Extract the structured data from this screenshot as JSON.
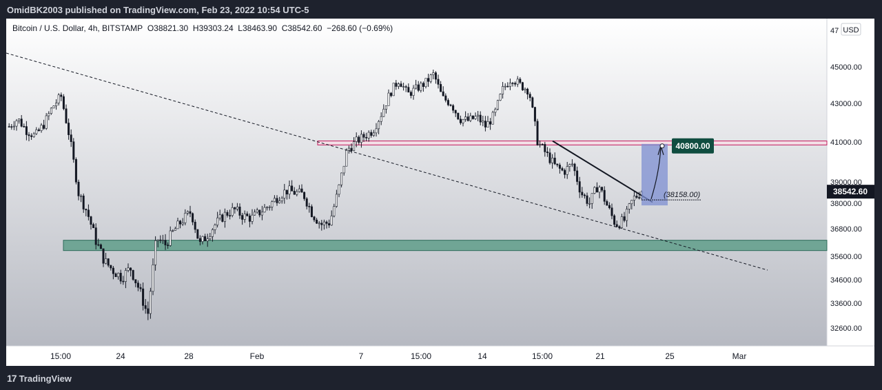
{
  "header": {
    "publish_line": "OmidBK2003 published on TradingView.com, Feb 23, 2022 10:54 UTC-5"
  },
  "legend": {
    "symbol": "Bitcoin / U.S. Dollar, 4h, BITSTAMP",
    "open": "O38821.30",
    "high": "H39303.24",
    "low": "L38463.90",
    "close": "C38542.60",
    "change": "−268.60 (−0.69%)"
  },
  "footer": {
    "brand": "TradingView",
    "logo_glyph": "17"
  },
  "colors": {
    "chart_bg_top": "#ffffff",
    "chart_bg_bottom": "#b2b5be",
    "candle": "#131722",
    "support_zone": "#5f9e8a",
    "resistance_line": "#c2185b",
    "target_box": "#7d8fd1",
    "target_label_bg": "#104d40",
    "price_tag_bg": "#131722"
  },
  "chart_data": {
    "type": "candlestick",
    "currency_label": "USD",
    "y_ticks": [
      "47000.00",
      "45000.00",
      "43000.00",
      "41000.00",
      "39000.00",
      "38000.00",
      "36800.00",
      "35600.00",
      "34600.00",
      "33600.00",
      "32600.00"
    ],
    "y_top_tick_partial": "47",
    "x_ticks": [
      "15:00",
      "24",
      "28",
      "Feb",
      "7",
      "15:00",
      "14",
      "15:00",
      "21",
      "25",
      "Mar"
    ],
    "ylim": [
      31900,
      48000
    ],
    "current_price": {
      "label": "38542.60",
      "value": 38542.6
    },
    "target": {
      "label": "40800.00",
      "value": 40800
    },
    "annotation": {
      "label": "(38158.00)",
      "value": 38158
    },
    "support_zone": {
      "low": 35850,
      "high": 36300
    },
    "resistance_line": {
      "low": 40850,
      "high": 41050
    },
    "series_close_waypoints": [
      41800,
      42200,
      41600,
      41300,
      41900,
      42800,
      43400,
      41200,
      38500,
      37600,
      36300,
      35400,
      35000,
      34700,
      35100,
      34200,
      33100,
      36400,
      36100,
      36700,
      37200,
      37600,
      36100,
      36600,
      37100,
      37500,
      37700,
      37400,
      37300,
      37600,
      37900,
      38300,
      38600,
      38500,
      38400,
      37500,
      37000,
      37100,
      38600,
      40600,
      41000,
      41300,
      41600,
      42500,
      43600,
      44300,
      43500,
      43800,
      44100,
      44600,
      43300,
      43000,
      42200,
      42100,
      42300,
      41800,
      42400,
      43800,
      44400,
      44000,
      43700,
      41000,
      40400,
      39800,
      39500,
      39900,
      38500,
      38000,
      38900,
      37900,
      37000,
      37200,
      38200,
      38542.6
    ]
  }
}
